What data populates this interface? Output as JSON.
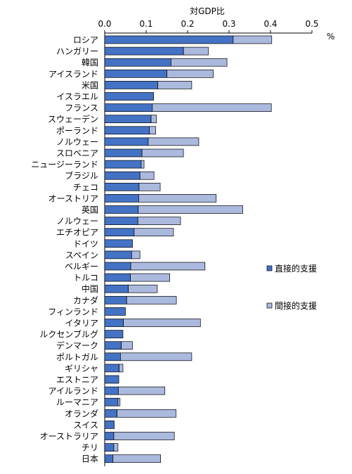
{
  "chart_data": {
    "type": "bar",
    "orientation": "horizontal",
    "stacked": true,
    "xlabel": "対GDP比",
    "unit": "%",
    "xlim": [
      0,
      0.5
    ],
    "xticks": [
      "0.0",
      "0.1",
      "0.2",
      "0.3",
      "0.4",
      "0.5"
    ],
    "grid": false,
    "legend_position": "right",
    "categories": [
      "ロシア",
      "ハンガリー",
      "韓国",
      "アイスランド",
      "米国",
      "イスラエル",
      "フランス",
      "スウェーデン",
      "ポーランド",
      "ノルウェー",
      "スロベニア",
      "ニュージーランド",
      "ブラジル",
      "チェコ",
      "オーストリア",
      "英国",
      "ノルウェー",
      "エチオピア",
      "ドイツ",
      "スペイン",
      "ベルギー",
      "トルコ",
      "中国",
      "カナダ",
      "フィンランド",
      "イタリア",
      "ルクセンブルグ",
      "デンマーク",
      "ポルトガル",
      "ギリシャ",
      "エストニア",
      "アイルランド",
      "ルーマニア",
      "オランダ",
      "スイス",
      "オーストラリア",
      "チリ",
      "日本"
    ],
    "series": [
      {
        "name": "直接的支援",
        "color": "#4472c4",
        "values": [
          0.31,
          0.19,
          0.16,
          0.15,
          0.128,
          0.118,
          0.115,
          0.112,
          0.108,
          0.105,
          0.09,
          0.088,
          0.085,
          0.083,
          0.082,
          0.081,
          0.08,
          0.071,
          0.067,
          0.065,
          0.063,
          0.062,
          0.057,
          0.053,
          0.05,
          0.045,
          0.044,
          0.04,
          0.038,
          0.035,
          0.034,
          0.033,
          0.032,
          0.03,
          0.023,
          0.022,
          0.022,
          0.02
        ]
      },
      {
        "name": "間接的支援",
        "color": "#aab9dd",
        "values": [
          0.093,
          0.06,
          0.135,
          0.112,
          0.082,
          0,
          0.287,
          0.013,
          0.015,
          0.122,
          0.1,
          0.007,
          0.034,
          0.051,
          0.187,
          0.252,
          0.103,
          0.095,
          0,
          0.02,
          0.179,
          0.095,
          0.07,
          0.12,
          0,
          0.186,
          0,
          0.027,
          0.172,
          0.009,
          0,
          0.112,
          0.005,
          0.142,
          0,
          0.146,
          0.01,
          0.115
        ]
      }
    ]
  }
}
